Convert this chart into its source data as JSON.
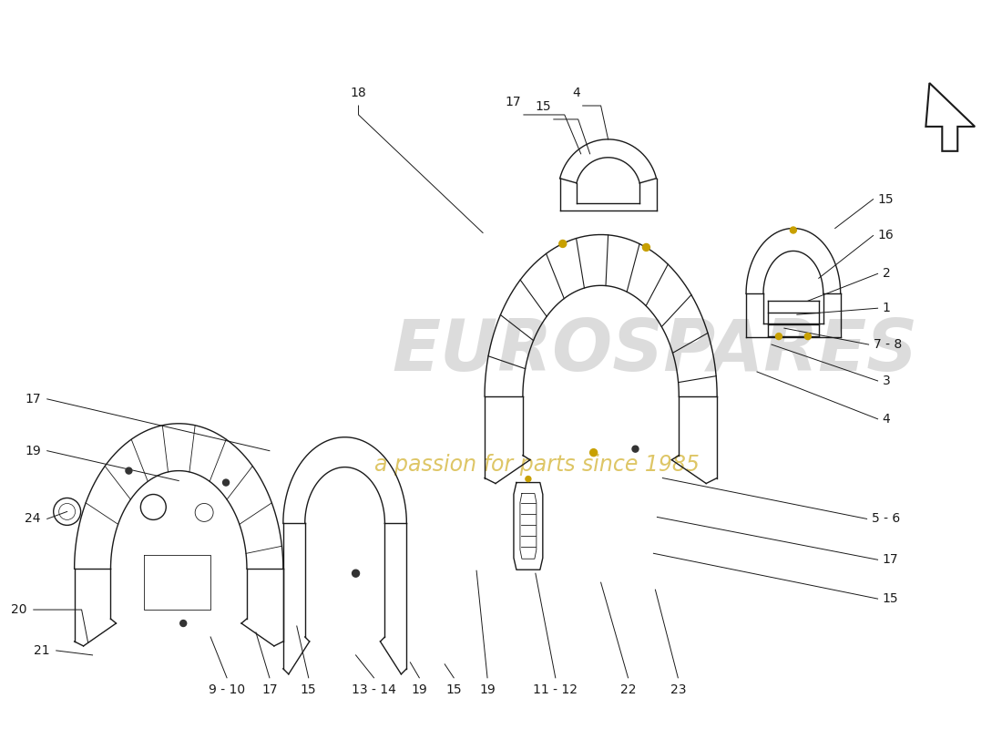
{
  "bg_color": "#ffffff",
  "line_color": "#1a1a1a",
  "lw": 1.0,
  "lw_thin": 0.6,
  "fs": 9,
  "watermark1": "EUROSPARES",
  "watermark2": "a passion for parts since 1985",
  "wm1_color": "#bbbbbb",
  "wm2_color": "#c8a000",
  "wm1_alpha": 0.5,
  "wm2_alpha": 0.6
}
